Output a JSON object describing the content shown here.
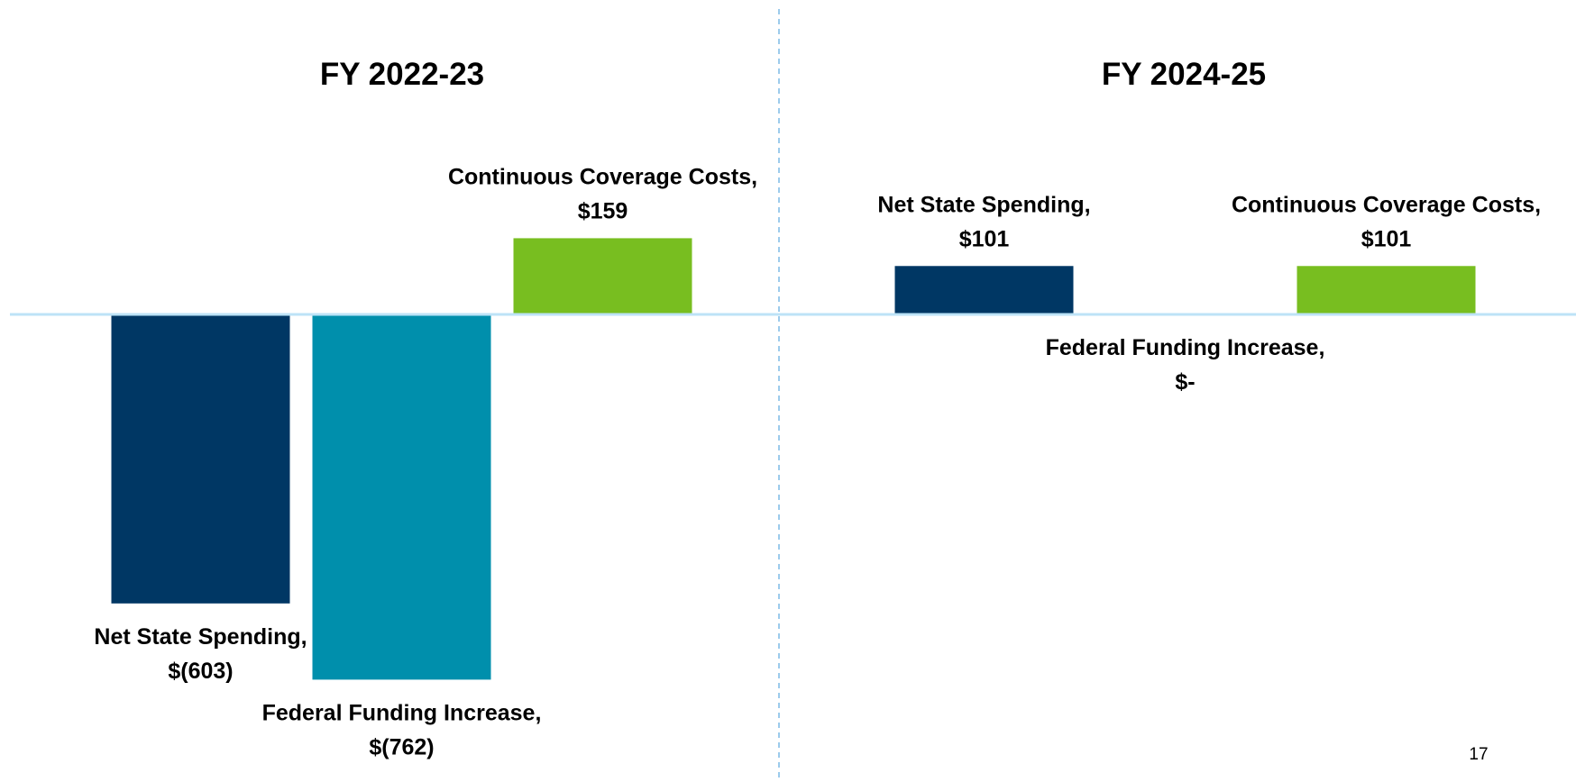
{
  "chart_data": [
    {
      "type": "bar",
      "title": "FY 2022-23",
      "categories": [
        "Net State Spending,",
        "Federal Funding Increase,",
        "Continuous Coverage Costs,"
      ],
      "values": [
        -603,
        -762,
        159
      ],
      "value_labels": [
        "$(603)",
        "$(762)",
        "$159"
      ],
      "colors": [
        "#003764",
        "#008fac",
        "#78be20"
      ],
      "ylim": [
        -800,
        300
      ]
    },
    {
      "type": "bar",
      "title": "FY 2024-25",
      "categories": [
        "Net State Spending,",
        "Federal Funding Increase,",
        "Continuous Coverage Costs,"
      ],
      "values": [
        101,
        0,
        101
      ],
      "value_labels": [
        "$101",
        "$-",
        "$101"
      ],
      "colors": [
        "#003764",
        "#008fac",
        "#78be20"
      ],
      "ylim": [
        -800,
        300
      ]
    }
  ],
  "page_number": "17"
}
